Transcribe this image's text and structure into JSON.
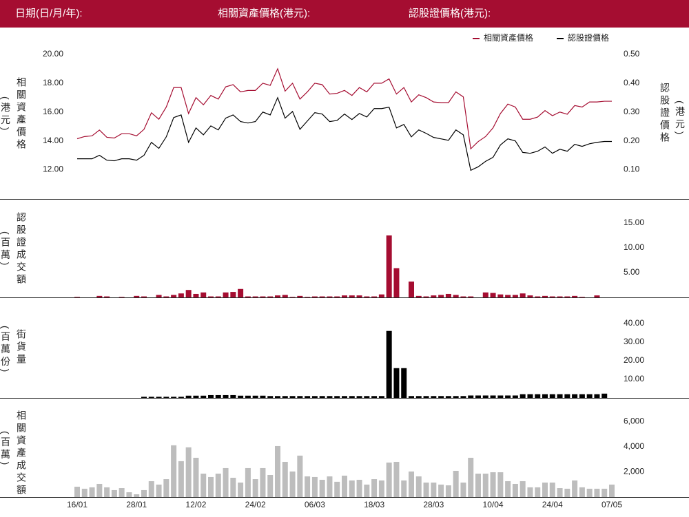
{
  "header": {
    "date_label": "日期(日/月/年):",
    "underlying_label": "相關資產價格(港元):",
    "warrant_label": "認股證價格(港元):"
  },
  "chart_data": [
    {
      "type": "line",
      "legend": "upper right",
      "ylabel": "相關資產價格",
      "ylabel_unit": "(港元)",
      "y2label": "認股證價格",
      "y2label_unit": "(港元)",
      "ylim": [
        11.5,
        20
      ],
      "yticks": [
        {
          "value": 12,
          "label": "12.00"
        },
        {
          "value": 14,
          "label": "14.00"
        },
        {
          "value": 16,
          "label": "16.00"
        },
        {
          "value": 18,
          "label": "18.00"
        },
        {
          "value": 20,
          "label": "20.00"
        }
      ],
      "y2lim": [
        0.075,
        0.5
      ],
      "y2ticks": [
        {
          "value": 0.1,
          "label": "0.10"
        },
        {
          "value": 0.2,
          "label": "0.20"
        },
        {
          "value": 0.3,
          "label": "0.30"
        },
        {
          "value": 0.4,
          "label": "0.40"
        },
        {
          "value": 0.5,
          "label": "0.50"
        }
      ],
      "series": [
        {
          "name": "相關資產價格",
          "color": "#a50d31",
          "values": [
            14.15,
            14.3,
            14.35,
            14.75,
            14.25,
            14.2,
            14.5,
            14.5,
            14.35,
            14.8,
            15.95,
            15.5,
            16.35,
            17.7,
            17.7,
            15.9,
            17.0,
            16.5,
            17.15,
            16.9,
            17.75,
            17.9,
            17.4,
            17.5,
            17.5,
            18.0,
            17.85,
            19.0,
            17.45,
            18.0,
            16.9,
            17.4,
            18.0,
            17.9,
            17.25,
            17.3,
            17.5,
            17.15,
            17.7,
            17.4,
            18.0,
            18.0,
            18.3,
            17.25,
            17.7,
            16.7,
            17.2,
            17.0,
            16.7,
            16.65,
            16.65,
            17.4,
            17.05,
            13.45,
            13.95,
            14.3,
            14.9,
            15.9,
            16.55,
            16.35,
            15.5,
            15.5,
            15.65,
            16.1,
            15.75,
            16.0,
            15.85,
            16.45,
            16.35,
            16.7,
            16.7,
            16.75,
            16.75
          ]
        },
        {
          "name": "認股證價格",
          "color": "#000000",
          "axis": "y2",
          "values": [
            0.138,
            0.138,
            0.138,
            0.15,
            0.133,
            0.131,
            0.138,
            0.138,
            0.133,
            0.15,
            0.195,
            0.174,
            0.214,
            0.281,
            0.29,
            0.195,
            0.245,
            0.221,
            0.252,
            0.238,
            0.279,
            0.29,
            0.267,
            0.262,
            0.267,
            0.3,
            0.29,
            0.35,
            0.279,
            0.302,
            0.24,
            0.269,
            0.298,
            0.293,
            0.267,
            0.271,
            0.293,
            0.274,
            0.295,
            0.283,
            0.312,
            0.312,
            0.317,
            0.245,
            0.257,
            0.214,
            0.238,
            0.226,
            0.212,
            0.207,
            0.202,
            0.238,
            0.221,
            0.098,
            0.11,
            0.129,
            0.143,
            0.186,
            0.207,
            0.2,
            0.16,
            0.157,
            0.164,
            0.179,
            0.157,
            0.171,
            0.164,
            0.188,
            0.181,
            0.19,
            0.195,
            0.198,
            0.198
          ]
        }
      ]
    },
    {
      "type": "bar",
      "ylabel": "認股證成交額",
      "ylabel_unit": "(百萬)",
      "color": "#a50d31",
      "ylim": [
        0,
        17.5
      ],
      "yticks": [
        {
          "value": 5,
          "label": "5.00"
        },
        {
          "value": 10,
          "label": "10.00"
        },
        {
          "value": 15,
          "label": "15.00"
        }
      ],
      "values": [
        0.1,
        0,
        0,
        0.3,
        0.2,
        0,
        0.1,
        0,
        0.3,
        0.2,
        0,
        0.5,
        0.2,
        0.5,
        0.8,
        1.5,
        0.7,
        1.0,
        0.2,
        0.2,
        1.0,
        1.1,
        1.7,
        0.2,
        0.2,
        0.2,
        0.2,
        0.4,
        0.5,
        0.1,
        0.3,
        0.1,
        0.2,
        0.2,
        0.2,
        0.2,
        0.4,
        0.4,
        0.4,
        0.2,
        0.2,
        0.6,
        12.5,
        5.9,
        0,
        3.2,
        0.3,
        0.2,
        0.4,
        0.5,
        0.7,
        0.5,
        0.2,
        0.2,
        0,
        1.0,
        0.9,
        0.6,
        0.5,
        0.5,
        0.8,
        0.4,
        0.2,
        0.3,
        0.2,
        0.2,
        0.2,
        0.3,
        0.1,
        0,
        0.4,
        0,
        0
      ]
    },
    {
      "type": "bar",
      "ylabel": "街貨量",
      "ylabel_unit": "(百萬份)",
      "color": "#000000",
      "ylim": [
        0,
        47
      ],
      "yticks": [
        {
          "value": 10,
          "label": "10.00"
        },
        {
          "value": 20,
          "label": "20.00"
        },
        {
          "value": 30,
          "label": "30.00"
        },
        {
          "value": 40,
          "label": "40.00"
        }
      ],
      "values": [
        null,
        null,
        null,
        null,
        null,
        null,
        null,
        null,
        null,
        0.6,
        0.6,
        0.6,
        0.6,
        0.6,
        0.6,
        1.2,
        1.2,
        1.2,
        1.5,
        1.5,
        1.5,
        1.5,
        1.2,
        1.2,
        1.2,
        1.2,
        1.0,
        1.0,
        1.0,
        1.0,
        1.0,
        1.0,
        1.0,
        1.0,
        1.0,
        1.0,
        1.0,
        1.0,
        1.0,
        1.0,
        1.0,
        1.0,
        36,
        16,
        16,
        1.0,
        1.0,
        1.0,
        1.0,
        1.0,
        1.0,
        1.0,
        1.0,
        1.3,
        1.3,
        1.3,
        1.3,
        1.3,
        1.3,
        1.3,
        2.0,
        2.0,
        2.0,
        2.0,
        2.0,
        2.0,
        2.0,
        2.0,
        2.0,
        2.0,
        2.0,
        2.3,
        null
      ]
    },
    {
      "type": "bar",
      "ylabel": "相關資產成交額",
      "ylabel_unit": "(百萬)",
      "color": "#bdbdbd",
      "ylim": [
        0,
        7000
      ],
      "yticks": [
        {
          "value": 2000,
          "label": "2,000"
        },
        {
          "value": 4000,
          "label": "4,000"
        },
        {
          "value": 6000,
          "label": "6,000"
        }
      ],
      "categories": [
        "16/01",
        null,
        null,
        null,
        null,
        null,
        null,
        null,
        "28/01",
        null,
        null,
        null,
        null,
        null,
        null,
        null,
        "12/02",
        null,
        null,
        null,
        null,
        null,
        null,
        null,
        "24/02",
        null,
        null,
        null,
        null,
        null,
        null,
        null,
        "06/03",
        null,
        null,
        null,
        null,
        null,
        null,
        null,
        "18/03",
        null,
        null,
        null,
        null,
        null,
        null,
        null,
        "28/03",
        null,
        null,
        null,
        null,
        null,
        null,
        null,
        "10/04",
        null,
        null,
        null,
        null,
        null,
        null,
        null,
        "24/04",
        null,
        null,
        null,
        null,
        null,
        null,
        null,
        "07/05"
      ],
      "values": [
        820,
        660,
        770,
        1040,
        770,
        550,
        710,
        380,
        220,
        550,
        1260,
        990,
        1420,
        4110,
        2850,
        3950,
        3120,
        1860,
        1590,
        1860,
        2300,
        1530,
        1150,
        2300,
        1420,
        2300,
        1750,
        4050,
        2790,
        2030,
        3290,
        1640,
        1590,
        1370,
        1640,
        1210,
        1700,
        1320,
        1370,
        990,
        1420,
        1320,
        2740,
        2790,
        1320,
        2030,
        1640,
        1150,
        1150,
        990,
        930,
        2080,
        1150,
        3120,
        1860,
        1860,
        1970,
        1970,
        1260,
        1040,
        1260,
        770,
        770,
        1150,
        1150,
        710,
        660,
        1320,
        770,
        660,
        660,
        660,
        990
      ]
    }
  ]
}
